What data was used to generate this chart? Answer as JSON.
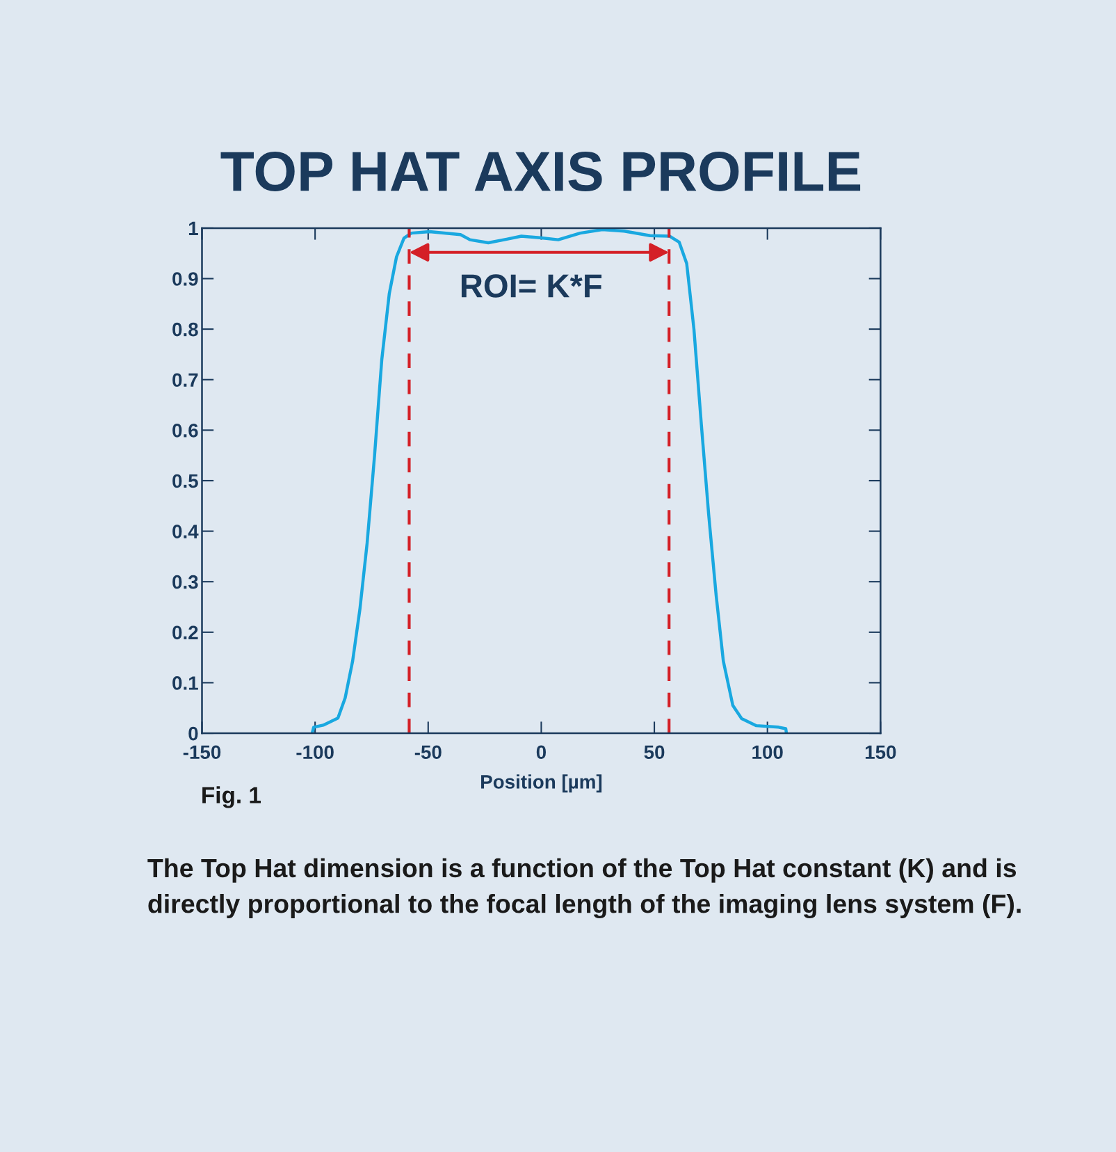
{
  "chart_data": {
    "type": "line",
    "title": "TOP HAT AXIS PROFILE",
    "xlabel": "Position [µm]",
    "series": [
      {
        "color": "#19a8e0",
        "x": [
          -101.3,
          -100.6,
          -96.4,
          -89.9,
          -86.7,
          -83.4,
          -80.2,
          -77,
          -73.7,
          -70.5,
          -67.2,
          -64,
          -60.7,
          -57.5,
          -49.4,
          -35.7,
          -31.5,
          -23.4,
          -15.3,
          -8.8,
          -0.6,
          7.5,
          17.2,
          27,
          36.7,
          48.1,
          56.8,
          61,
          64.3,
          67.5,
          70.8,
          74,
          77.3,
          80.5,
          84.7,
          88.6,
          95.1,
          104.9,
          108.1,
          108.4
        ],
        "values": [
          0,
          0.012,
          0.016,
          0.03,
          0.07,
          0.143,
          0.245,
          0.376,
          0.55,
          0.74,
          0.87,
          0.943,
          0.98,
          0.99,
          0.993,
          0.987,
          0.977,
          0.971,
          0.978,
          0.984,
          0.981,
          0.977,
          0.99,
          0.997,
          0.994,
          0.985,
          0.984,
          0.972,
          0.93,
          0.8,
          0.61,
          0.434,
          0.274,
          0.143,
          0.055,
          0.029,
          0.015,
          0.012,
          0.009,
          0
        ]
      }
    ],
    "xlim": [
      -150,
      150
    ],
    "xticks": [
      -150,
      -100,
      -50,
      0,
      50,
      100,
      150
    ],
    "ylim": [
      0,
      1
    ],
    "yticks": [
      0,
      0.1,
      0.2,
      0.3,
      0.4,
      0.5,
      0.6,
      0.7,
      0.8,
      0.9,
      1
    ],
    "grid": false,
    "legend": false,
    "marker": "none",
    "line_style": "solid",
    "ref_lines": [
      {
        "axis": "x",
        "value": -58.4,
        "color": "#d42027",
        "line_style": "dashed"
      },
      {
        "axis": "x",
        "value": 56.5,
        "color": "#d42027",
        "line_style": "dashed"
      }
    ],
    "annotations": [
      "ROI= K*F",
      "Fig. 1",
      "The Top Hat dimension is a function of the Top Hat constant (K) and is directly proportional to the focal length of the imaging lens system (F)."
    ]
  }
}
